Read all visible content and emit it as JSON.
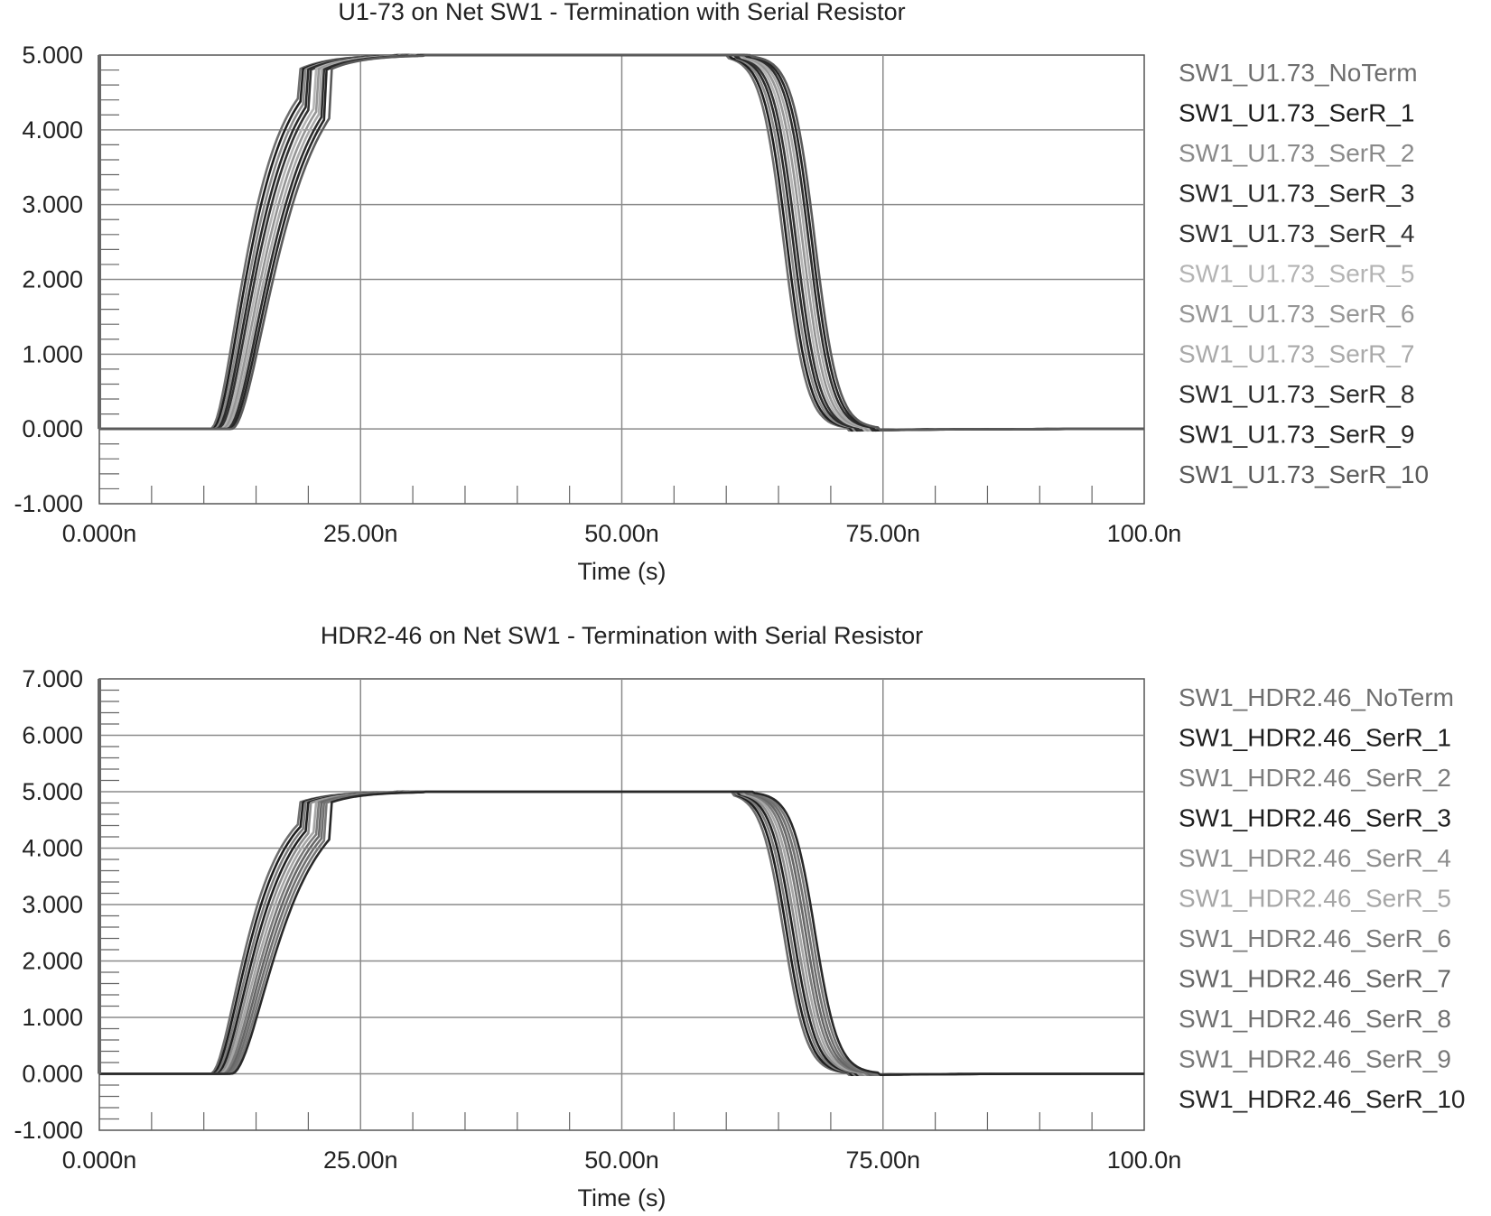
{
  "chart_data": [
    {
      "type": "line",
      "title": "U1-73 on Net SW1 - Termination with Serial Resistor",
      "xlabel": "Time (s)",
      "ylabel": "",
      "xlim": [
        0,
        100
      ],
      "ylim": [
        -1,
        5
      ],
      "x_unit": "ns",
      "x_ticks": [
        0,
        25,
        50,
        75,
        100
      ],
      "x_tick_labels": [
        "0.000n",
        "25.00n",
        "50.00n",
        "75.00n",
        "100.0n"
      ],
      "y_ticks": [
        -1,
        0,
        1,
        2,
        3,
        4,
        5
      ],
      "y_tick_labels": [
        "-1.000",
        "0.000",
        "1.000",
        "2.000",
        "3.000",
        "4.000",
        "5.000"
      ],
      "grid": true,
      "legend_position": "right",
      "series": [
        {
          "name": "SW1_U1.73_NoTerm",
          "color": "#6e6e6e",
          "rise_start": 10.6,
          "rise_mid": 14.0,
          "fall_start": 60.2,
          "fall_mid": 65.5
        },
        {
          "name": "SW1_U1.73_SerR_1",
          "color": "#1e1e1e",
          "rise_start": 10.8,
          "rise_mid": 14.3,
          "fall_start": 60.5,
          "fall_mid": 65.8
        },
        {
          "name": "SW1_U1.73_SerR_2",
          "color": "#8a8a8a",
          "rise_start": 11.0,
          "rise_mid": 14.6,
          "fall_start": 60.8,
          "fall_mid": 66.1
        },
        {
          "name": "SW1_U1.73_SerR_3",
          "color": "#2a2a2a",
          "rise_start": 11.2,
          "rise_mid": 14.9,
          "fall_start": 61.0,
          "fall_mid": 66.4
        },
        {
          "name": "SW1_U1.73_SerR_4",
          "color": "#333333",
          "rise_start": 11.4,
          "rise_mid": 15.2,
          "fall_start": 61.2,
          "fall_mid": 66.7
        },
        {
          "name": "SW1_U1.73_SerR_5",
          "color": "#b4b4b4",
          "rise_start": 11.6,
          "rise_mid": 15.5,
          "fall_start": 61.4,
          "fall_mid": 67.0
        },
        {
          "name": "SW1_U1.73_SerR_6",
          "color": "#969696",
          "rise_start": 11.8,
          "rise_mid": 15.8,
          "fall_start": 61.6,
          "fall_mid": 67.3
        },
        {
          "name": "SW1_U1.73_SerR_7",
          "color": "#aaaaaa",
          "rise_start": 12.0,
          "rise_mid": 16.1,
          "fall_start": 61.8,
          "fall_mid": 67.6
        },
        {
          "name": "SW1_U1.73_SerR_8",
          "color": "#2e2e2e",
          "rise_start": 12.2,
          "rise_mid": 16.4,
          "fall_start": 62.0,
          "fall_mid": 67.9
        },
        {
          "name": "SW1_U1.73_SerR_9",
          "color": "#262626",
          "rise_start": 12.4,
          "rise_mid": 16.7,
          "fall_start": 62.2,
          "fall_mid": 68.2
        },
        {
          "name": "SW1_U1.73_SerR_10",
          "color": "#5a5a5a",
          "rise_start": 12.6,
          "rise_mid": 17.0,
          "fall_start": 62.4,
          "fall_mid": 68.5
        }
      ]
    },
    {
      "type": "line",
      "title": "HDR2-46 on Net SW1 - Termination with Serial Resistor",
      "xlabel": "Time (s)",
      "ylabel": "",
      "xlim": [
        0,
        100
      ],
      "ylim": [
        -1,
        7
      ],
      "x_unit": "ns",
      "x_ticks": [
        0,
        25,
        50,
        75,
        100
      ],
      "x_tick_labels": [
        "0.000n",
        "25.00n",
        "50.00n",
        "75.00n",
        "100.0n"
      ],
      "y_ticks": [
        -1,
        0,
        1,
        2,
        3,
        4,
        5,
        6,
        7
      ],
      "y_tick_labels": [
        "-1.000",
        "0.000",
        "1.000",
        "2.000",
        "3.000",
        "4.000",
        "5.000",
        "6.000",
        "7.000"
      ],
      "grid": true,
      "legend_position": "right",
      "series": [
        {
          "name": "SW1_HDR2.46_NoTerm",
          "color": "#6e6e6e",
          "rise_start": 10.6,
          "rise_mid": 14.0,
          "fall_start": 60.6,
          "fall_mid": 65.5
        },
        {
          "name": "SW1_HDR2.46_SerR_1",
          "color": "#1e1e1e",
          "rise_start": 10.8,
          "rise_mid": 14.3,
          "fall_start": 60.8,
          "fall_mid": 65.8
        },
        {
          "name": "SW1_HDR2.46_SerR_2",
          "color": "#7c7c7c",
          "rise_start": 11.0,
          "rise_mid": 14.6,
          "fall_start": 61.0,
          "fall_mid": 66.1
        },
        {
          "name": "SW1_HDR2.46_SerR_3",
          "color": "#202020",
          "rise_start": 11.2,
          "rise_mid": 14.9,
          "fall_start": 61.2,
          "fall_mid": 66.4
        },
        {
          "name": "SW1_HDR2.46_SerR_4",
          "color": "#8c8c8c",
          "rise_start": 11.4,
          "rise_mid": 15.2,
          "fall_start": 61.4,
          "fall_mid": 66.7
        },
        {
          "name": "SW1_HDR2.46_SerR_5",
          "color": "#a6a6a6",
          "rise_start": 11.6,
          "rise_mid": 15.5,
          "fall_start": 61.6,
          "fall_mid": 67.0
        },
        {
          "name": "SW1_HDR2.46_SerR_6",
          "color": "#7a7a7a",
          "rise_start": 11.8,
          "rise_mid": 15.8,
          "fall_start": 61.8,
          "fall_mid": 67.3
        },
        {
          "name": "SW1_HDR2.46_SerR_7",
          "color": "#666666",
          "rise_start": 12.0,
          "rise_mid": 16.1,
          "fall_start": 62.0,
          "fall_mid": 67.6
        },
        {
          "name": "SW1_HDR2.46_SerR_8",
          "color": "#707070",
          "rise_start": 12.2,
          "rise_mid": 16.4,
          "fall_start": 62.2,
          "fall_mid": 67.9
        },
        {
          "name": "SW1_HDR2.46_SerR_9",
          "color": "#787878",
          "rise_start": 12.4,
          "rise_mid": 16.7,
          "fall_start": 62.4,
          "fall_mid": 68.2
        },
        {
          "name": "SW1_HDR2.46_SerR_10",
          "color": "#282828",
          "rise_start": 12.6,
          "rise_mid": 17.0,
          "fall_start": 62.6,
          "fall_mid": 68.5
        }
      ]
    }
  ]
}
